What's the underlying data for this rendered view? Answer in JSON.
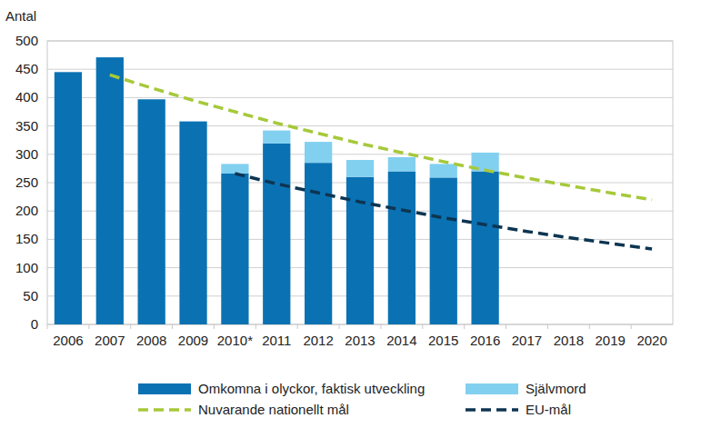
{
  "chart_data": {
    "type": "bar",
    "stacked": true,
    "y_label": "Antal",
    "categories": [
      "2006",
      "2007",
      "2008",
      "2009",
      "2010*",
      "2011",
      "2012",
      "2013",
      "2014",
      "2015",
      "2016",
      "2017",
      "2018",
      "2019",
      "2020"
    ],
    "series": [
      {
        "name": "Omkomna i olyckor, faktisk utveckling",
        "type": "bar",
        "color": "#0a72b3",
        "values": [
          445,
          471,
          397,
          358,
          266,
          319,
          285,
          260,
          270,
          259,
          270,
          null,
          null,
          null,
          null
        ]
      },
      {
        "name": "Självmord",
        "type": "bar",
        "color": "#82d0f0",
        "values": [
          null,
          null,
          null,
          null,
          17,
          23,
          37,
          30,
          25,
          24,
          33,
          null,
          null,
          null,
          null
        ]
      },
      {
        "name": "Nuvarande nationellt mål",
        "type": "line",
        "line_style": "dashed",
        "color": "#a6c93a",
        "values": [
          null,
          440,
          417,
          395,
          375,
          355,
          337,
          319,
          303,
          287,
          272,
          258,
          245,
          232,
          220
        ]
      },
      {
        "name": "EU-mål",
        "type": "line",
        "line_style": "dashed",
        "color": "#0d3552",
        "values": [
          null,
          null,
          null,
          null,
          266,
          248,
          232,
          216,
          202,
          188,
          176,
          164,
          153,
          143,
          133
        ]
      }
    ],
    "ylim": [
      0,
      500
    ],
    "yticks": [
      0,
      50,
      100,
      150,
      200,
      250,
      300,
      350,
      400,
      450,
      500
    ],
    "grid": true,
    "legend": "bottom"
  }
}
